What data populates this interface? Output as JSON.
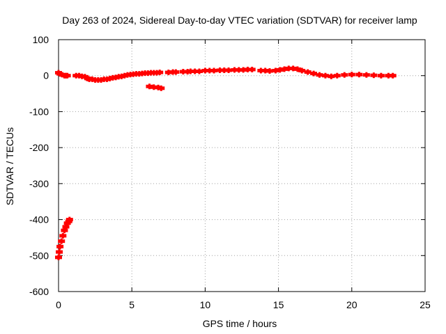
{
  "chart_data": {
    "type": "scatter",
    "title": "Day 263 of 2024, Sidereal Day-to-day VTEC variation (SDTVAR) for receiver lamp",
    "xlabel": "GPS time / hours",
    "ylabel": "SDTVAR / TECUs",
    "xlim": [
      0,
      25
    ],
    "ylim": [
      -600,
      100
    ],
    "xticks": [
      0,
      5,
      10,
      15,
      20,
      25
    ],
    "yticks": [
      100,
      0,
      -100,
      -200,
      -300,
      -400,
      -500,
      -600
    ],
    "grid": true,
    "marker": "plus",
    "series_color": "#ff0000",
    "series": [
      {
        "name": "SDTVAR",
        "x": [
          0.0,
          0.05,
          0.1,
          0.2,
          0.3,
          0.4,
          0.5,
          0.6,
          0.7,
          0.75,
          0.0,
          0.1,
          0.4,
          0.5,
          0.6,
          1.2,
          1.4,
          1.6,
          1.8,
          2.0,
          2.1,
          2.3,
          2.5,
          2.7,
          2.9,
          3.1,
          3.3,
          3.5,
          3.7,
          3.9,
          4.1,
          4.3,
          4.5,
          4.7,
          4.9,
          5.1,
          5.3,
          5.5,
          5.7,
          5.9,
          6.1,
          6.3,
          6.5,
          6.7,
          6.9,
          6.2,
          6.5,
          6.8,
          7.0,
          7.5,
          7.8,
          8.0,
          8.5,
          8.8,
          9.0,
          9.3,
          9.6,
          10.0,
          10.3,
          10.6,
          11.0,
          11.3,
          11.6,
          12.0,
          12.3,
          12.6,
          12.9,
          13.2,
          13.8,
          14.1,
          14.4,
          14.8,
          15.1,
          15.4,
          15.7,
          16.0,
          16.3,
          16.6,
          17.0,
          17.4,
          17.8,
          18.2,
          18.6,
          19.0,
          19.5,
          20.0,
          20.5,
          21.0,
          21.5,
          22.0,
          22.5,
          22.8
        ],
        "y": [
          -505,
          -490,
          -475,
          -460,
          -445,
          -430,
          -420,
          -410,
          -405,
          -400,
          8,
          5,
          0,
          0,
          0,
          0,
          0,
          -2,
          -3,
          -8,
          -10,
          -10,
          -12,
          -12,
          -12,
          -10,
          -10,
          -8,
          -6,
          -5,
          -3,
          -2,
          0,
          2,
          3,
          4,
          5,
          5,
          6,
          7,
          7,
          8,
          8,
          8,
          9,
          -30,
          -32,
          -33,
          -35,
          9,
          10,
          10,
          11,
          11,
          12,
          12,
          12,
          14,
          14,
          14,
          15,
          15,
          15,
          16,
          16,
          16,
          17,
          17,
          14,
          14,
          13,
          14,
          16,
          18,
          20,
          20,
          18,
          14,
          10,
          6,
          2,
          0,
          -2,
          0,
          2,
          3,
          3,
          2,
          1,
          0,
          0,
          0
        ]
      }
    ]
  }
}
